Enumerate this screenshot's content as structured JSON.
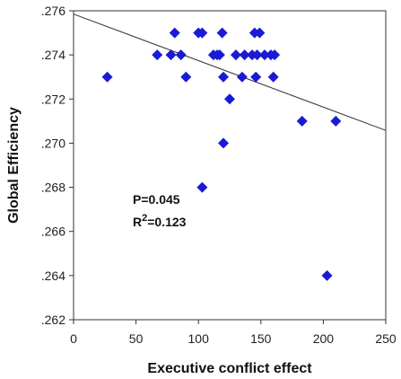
{
  "chart_data": {
    "type": "scatter",
    "title": "",
    "xlabel": "Executive conflict effect",
    "ylabel": "Global  Efficiency",
    "xlim": [
      0,
      250
    ],
    "ylim": [
      0.262,
      0.276
    ],
    "x_ticks": [
      "0",
      "50",
      "100",
      "150",
      "200",
      "250"
    ],
    "y_ticks": [
      ".262",
      ".264",
      ".266",
      ".268",
      ".270",
      ".272",
      ".274",
      ".276"
    ],
    "marker_color": "#1a1ad6",
    "line_color": "#333333",
    "series": [
      {
        "points": [
          {
            "x": 27,
            "y": 0.273
          },
          {
            "x": 67,
            "y": 0.274
          },
          {
            "x": 78,
            "y": 0.274
          },
          {
            "x": 81,
            "y": 0.275
          },
          {
            "x": 86,
            "y": 0.274
          },
          {
            "x": 90,
            "y": 0.273
          },
          {
            "x": 100,
            "y": 0.275
          },
          {
            "x": 103,
            "y": 0.275
          },
          {
            "x": 103,
            "y": 0.268
          },
          {
            "x": 112,
            "y": 0.274
          },
          {
            "x": 115,
            "y": 0.274
          },
          {
            "x": 117,
            "y": 0.274
          },
          {
            "x": 119,
            "y": 0.275
          },
          {
            "x": 120,
            "y": 0.273
          },
          {
            "x": 120,
            "y": 0.27
          },
          {
            "x": 125,
            "y": 0.272
          },
          {
            "x": 130,
            "y": 0.274
          },
          {
            "x": 135,
            "y": 0.273
          },
          {
            "x": 137,
            "y": 0.274
          },
          {
            "x": 143,
            "y": 0.274
          },
          {
            "x": 145,
            "y": 0.275
          },
          {
            "x": 146,
            "y": 0.273
          },
          {
            "x": 147,
            "y": 0.274
          },
          {
            "x": 149,
            "y": 0.275
          },
          {
            "x": 153,
            "y": 0.274
          },
          {
            "x": 158,
            "y": 0.274
          },
          {
            "x": 160,
            "y": 0.273
          },
          {
            "x": 161,
            "y": 0.274
          },
          {
            "x": 183,
            "y": 0.271
          },
          {
            "x": 203,
            "y": 0.264
          },
          {
            "x": 210,
            "y": 0.271
          }
        ]
      }
    ],
    "trendline": {
      "x": [
        0,
        250
      ],
      "y": [
        0.27585,
        0.27058
      ]
    },
    "annotations": {
      "p_text": "P=0.045",
      "r2_prefix": "R",
      "r2_sup": "2",
      "r2_value": "=0.123"
    }
  }
}
